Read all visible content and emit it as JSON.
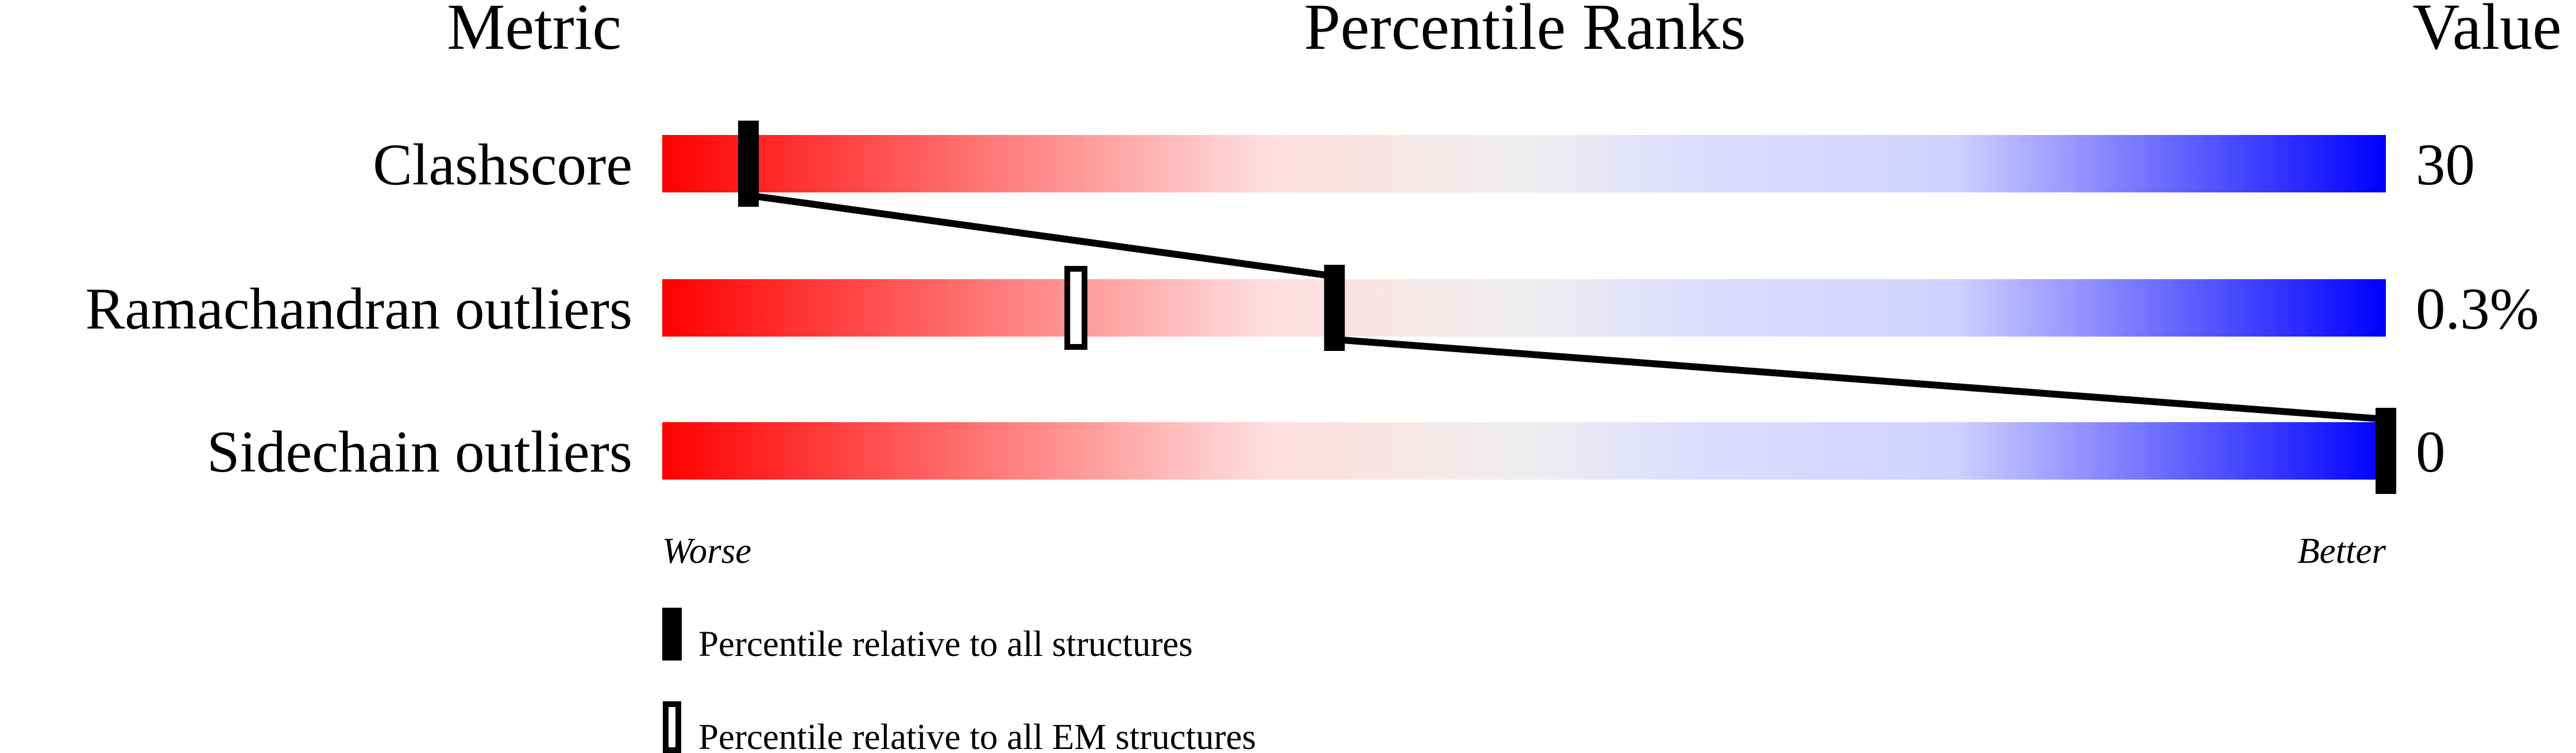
{
  "chart_data": {
    "type": "percentile-slider",
    "headers": {
      "metric": "Metric",
      "ranks": "Percentile Ranks",
      "value": "Value"
    },
    "axis": {
      "left_label": "Worse",
      "right_label": "Better",
      "range": [
        0,
        100
      ]
    },
    "gradient_colors": [
      "#ff0000",
      "#ffdddd",
      "#eeeeee",
      "#ddddff",
      "#0000ff"
    ],
    "metrics": [
      {
        "name": "Clashscore",
        "value": "30",
        "percentile_all": 5,
        "percentile_em": null
      },
      {
        "name": "Ramachandran outliers",
        "value": "0.3%",
        "percentile_all": 39,
        "percentile_em": 24
      },
      {
        "name": "Sidechain outliers",
        "value": "0",
        "percentile_all": 100,
        "percentile_em": null
      }
    ],
    "legend": {
      "all": "Percentile relative to all structures",
      "em": "Percentile relative to all EM structures"
    }
  }
}
